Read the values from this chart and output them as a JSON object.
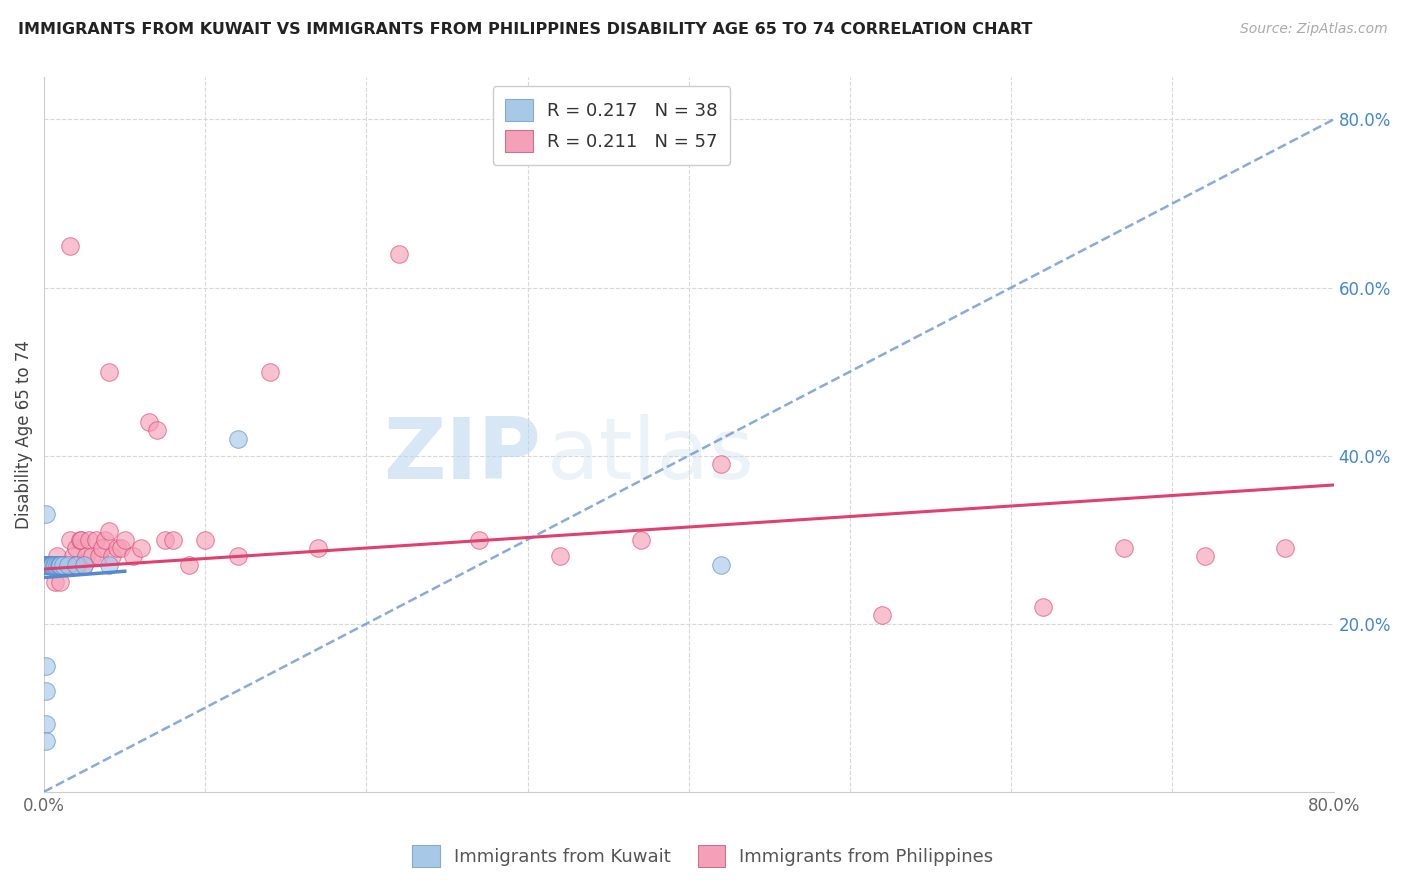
{
  "title": "IMMIGRANTS FROM KUWAIT VS IMMIGRANTS FROM PHILIPPINES DISABILITY AGE 65 TO 74 CORRELATION CHART",
  "source": "Source: ZipAtlas.com",
  "ylabel": "Disability Age 65 to 74",
  "xlim": [
    0.0,
    0.8
  ],
  "ylim": [
    0.0,
    0.85
  ],
  "legend_labels": [
    "Immigrants from Kuwait",
    "Immigrants from Philippines"
  ],
  "kuwait_R": "0.217",
  "kuwait_N": "38",
  "phil_R": "0.211",
  "phil_N": "57",
  "kuwait_color": "#a8c8e8",
  "phil_color": "#f4a0b8",
  "kuwait_line_color": "#5588cc",
  "phil_line_color": "#e04070",
  "background_color": "#ffffff",
  "grid_color": "#d8d8d8",
  "watermark_zip": "ZIP",
  "watermark_atlas": "atlas",
  "kuwait_x": [
    0.001,
    0.001,
    0.001,
    0.001,
    0.001,
    0.001,
    0.001,
    0.001,
    0.001,
    0.001,
    0.002,
    0.002,
    0.002,
    0.002,
    0.002,
    0.003,
    0.003,
    0.003,
    0.003,
    0.004,
    0.004,
    0.004,
    0.005,
    0.005,
    0.005,
    0.006,
    0.007,
    0.008,
    0.009,
    0.01,
    0.01,
    0.012,
    0.015,
    0.02,
    0.025,
    0.04,
    0.12,
    0.42
  ],
  "kuwait_y": [
    0.27,
    0.27,
    0.27,
    0.27,
    0.27,
    0.08,
    0.06,
    0.12,
    0.15,
    0.33,
    0.27,
    0.27,
    0.27,
    0.27,
    0.27,
    0.27,
    0.27,
    0.27,
    0.27,
    0.27,
    0.27,
    0.27,
    0.27,
    0.27,
    0.27,
    0.27,
    0.27,
    0.27,
    0.27,
    0.27,
    0.27,
    0.27,
    0.27,
    0.27,
    0.27,
    0.27,
    0.42,
    0.27
  ],
  "phil_x": [
    0.001,
    0.001,
    0.003,
    0.004,
    0.005,
    0.006,
    0.007,
    0.008,
    0.009,
    0.01,
    0.01,
    0.012,
    0.013,
    0.015,
    0.016,
    0.018,
    0.019,
    0.02,
    0.021,
    0.022,
    0.023,
    0.025,
    0.026,
    0.028,
    0.03,
    0.032,
    0.034,
    0.036,
    0.038,
    0.04,
    0.042,
    0.045,
    0.048,
    0.05,
    0.055,
    0.06,
    0.065,
    0.07,
    0.075,
    0.08,
    0.09,
    0.1,
    0.12,
    0.14,
    0.17,
    0.22,
    0.27,
    0.32,
    0.37,
    0.42,
    0.52,
    0.62,
    0.67,
    0.72,
    0.77,
    0.016,
    0.04
  ],
  "phil_y": [
    0.27,
    0.27,
    0.27,
    0.27,
    0.27,
    0.27,
    0.25,
    0.28,
    0.27,
    0.27,
    0.25,
    0.27,
    0.27,
    0.27,
    0.3,
    0.28,
    0.27,
    0.29,
    0.27,
    0.3,
    0.3,
    0.27,
    0.28,
    0.3,
    0.28,
    0.3,
    0.28,
    0.29,
    0.3,
    0.31,
    0.28,
    0.29,
    0.29,
    0.3,
    0.28,
    0.29,
    0.44,
    0.43,
    0.3,
    0.3,
    0.27,
    0.3,
    0.28,
    0.5,
    0.29,
    0.64,
    0.3,
    0.28,
    0.3,
    0.39,
    0.21,
    0.22,
    0.29,
    0.28,
    0.29,
    0.65,
    0.5
  ],
  "kuwait_trendline": [
    0.0,
    0.0,
    0.8,
    0.8
  ],
  "phil_trendline_start_y": 0.265,
  "phil_trendline_end_y": 0.365
}
